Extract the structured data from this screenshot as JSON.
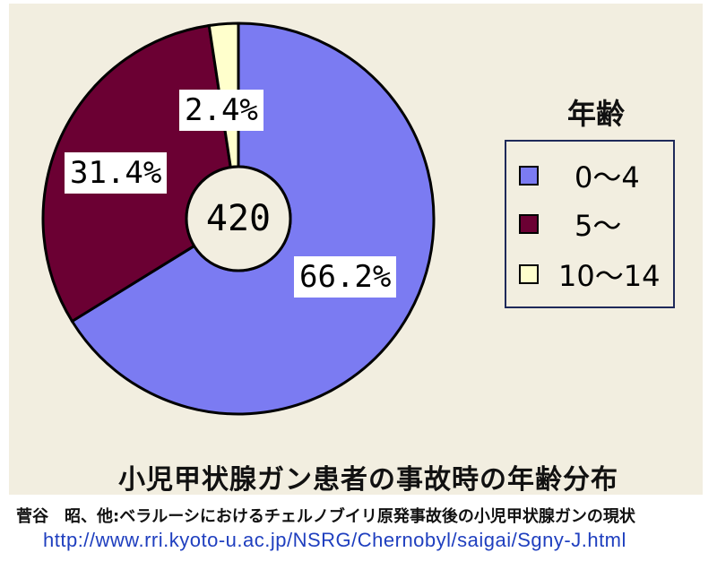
{
  "chart_data": {
    "type": "pie",
    "title": "小児甲状腺ガン患者の事故時の年齢分布",
    "center_label": "420",
    "legend_title": "年齢",
    "legend_position": "right",
    "slices": [
      {
        "label": "0～4",
        "value": 66.2,
        "value_label": "66.2%",
        "color": "#7b7bf2"
      },
      {
        "label": "5～",
        "value": 31.4,
        "value_label": "31.4%",
        "color": "#6b0033"
      },
      {
        "label": "10～14",
        "value": 2.4,
        "value_label": "2.4%",
        "color": "#ffffcc"
      }
    ]
  },
  "source": {
    "citation": "菅谷　昭、他:ベラルーシにおけるチェルノブイリ原発事故後の小児甲状腺ガンの現状",
    "url": "http://www.rri.kyoto-u.ac.jp/NSRG/Chernobyl/saigai/Sgny-J.html"
  }
}
